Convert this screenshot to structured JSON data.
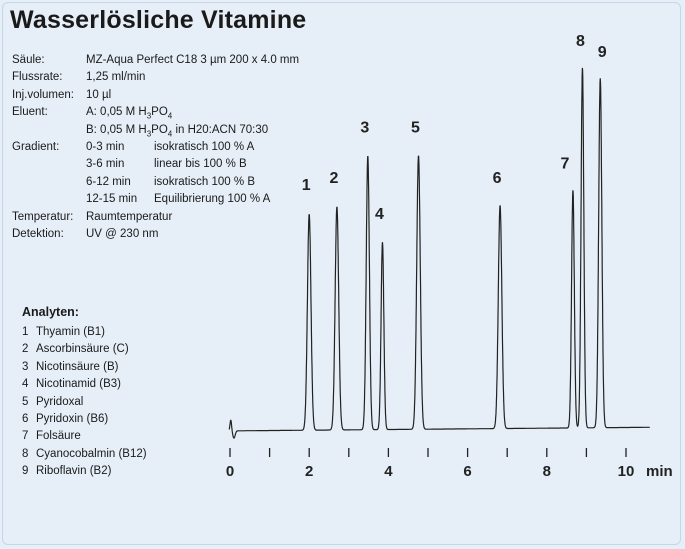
{
  "title": "Wasserlösliche Vitamine",
  "params": [
    {
      "label": "Säule:",
      "value": "MZ-Aqua Perfect C18 3 µm 200 x 4.0 mm"
    },
    {
      "label": "Flussrate:",
      "value": "1,25 ml/min"
    },
    {
      "label": "Inj.volumen:",
      "value": "10 µl"
    }
  ],
  "eluent": {
    "label": "Eluent:",
    "a": {
      "pre": "A: 0,05 M H",
      "sub1": "3",
      "mid": "PO",
      "sub2": "4",
      "post": ""
    },
    "b": {
      "pre": "B: 0,05 M H",
      "sub1": "3",
      "mid": "PO",
      "sub2": "4",
      "post": " in H20:ACN 70:30"
    }
  },
  "gradient": {
    "label": "Gradient:",
    "steps": [
      {
        "time": "0-3 min",
        "desc": "isokratisch 100 % A"
      },
      {
        "time": "3-6 min",
        "desc": "linear bis 100 % B"
      },
      {
        "time": "6-12 min",
        "desc": "isokratisch 100 % B"
      },
      {
        "time": "12-15 min",
        "desc": "Equilibrierung 100 % A"
      }
    ]
  },
  "params2": [
    {
      "label": "Temperatur:",
      "value": "Raumtemperatur"
    },
    {
      "label": "Detektion:",
      "value": "UV @ 230 nm"
    }
  ],
  "analytes": {
    "title": "Analyten:",
    "items": [
      {
        "num": "1",
        "name": "Thyamin (B1)"
      },
      {
        "num": "2",
        "name": "Ascorbinsäure (C)"
      },
      {
        "num": "3",
        "name": "Nicotinsäure (B)"
      },
      {
        "num": "4",
        "name": "Nicotinamid (B3)"
      },
      {
        "num": "5",
        "name": "Pyridoxal"
      },
      {
        "num": "6",
        "name": "Pyridoxin (B6)"
      },
      {
        "num": "7",
        "name": "Folsäure"
      },
      {
        "num": "8",
        "name": "Cyanocobalmin (B12)"
      },
      {
        "num": "9",
        "name": "Riboflavin (B2)"
      }
    ]
  },
  "chart_data": {
    "type": "line",
    "xlabel": "min",
    "xlim": [
      0,
      10.6
    ],
    "ylim": [
      0,
      1
    ],
    "xticks": [
      0,
      1,
      2,
      3,
      4,
      5,
      6,
      7,
      8,
      9,
      10
    ],
    "xticklabels": [
      "0",
      "2",
      "4",
      "6",
      "8",
      "10"
    ],
    "xticklabel_values": [
      0,
      2,
      4,
      6,
      8,
      10
    ],
    "grid": false,
    "peaks": [
      {
        "label": "1",
        "x": 2.0,
        "height": 0.6,
        "width": 0.045
      },
      {
        "label": "2",
        "x": 2.7,
        "height": 0.62,
        "width": 0.045
      },
      {
        "label": "3",
        "x": 3.48,
        "height": 0.76,
        "width": 0.04
      },
      {
        "label": "4",
        "x": 3.85,
        "height": 0.52,
        "width": 0.035
      },
      {
        "label": "5",
        "x": 4.76,
        "height": 0.76,
        "width": 0.045
      },
      {
        "label": "6",
        "x": 6.82,
        "height": 0.62,
        "width": 0.045
      },
      {
        "label": "7",
        "x": 8.66,
        "height": 0.66,
        "width": 0.035
      },
      {
        "label": "8",
        "x": 8.9,
        "height": 1.0,
        "width": 0.035
      },
      {
        "label": "9",
        "x": 9.35,
        "height": 0.97,
        "width": 0.04
      }
    ]
  }
}
